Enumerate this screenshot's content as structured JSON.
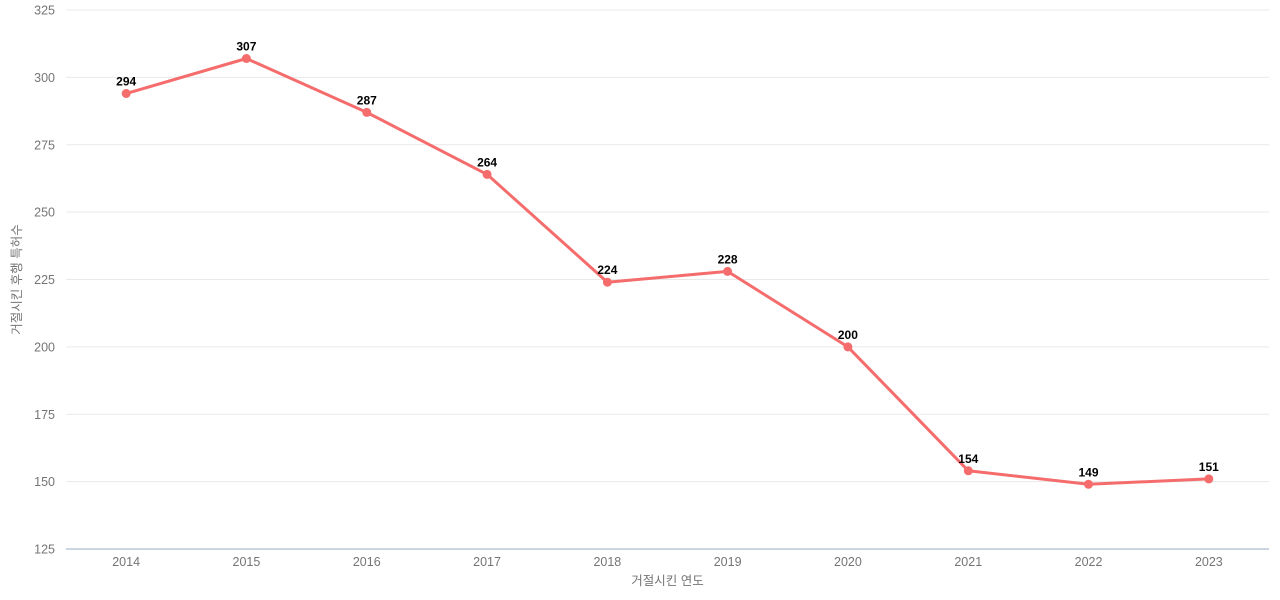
{
  "page": {
    "background": "#ffffff"
  },
  "chart_data": {
    "type": "line",
    "categories": [
      "2014",
      "2015",
      "2016",
      "2017",
      "2018",
      "2019",
      "2020",
      "2021",
      "2022",
      "2023"
    ],
    "series": [
      {
        "name": "거절시킨 후행 특허수",
        "values": [
          294,
          307,
          287,
          264,
          224,
          228,
          200,
          154,
          149,
          151
        ]
      }
    ],
    "xlabel": "거절시킨 연도",
    "ylabel": "거절시킨 후행 특허수",
    "ylim": [
      125,
      325
    ],
    "yticks": [
      125,
      150,
      175,
      200,
      225,
      250,
      275,
      300,
      325
    ],
    "grid": true,
    "legend": "none",
    "data_labels": true,
    "colors": {
      "line": "#f56c6c",
      "point": "#f56c6c",
      "grid": "#e9e9e9",
      "axis_line": "#ccd6e3",
      "tick_label": "#757575",
      "axis_title": "#757575",
      "data_label": "#000000",
      "background": "#ffffff"
    }
  }
}
